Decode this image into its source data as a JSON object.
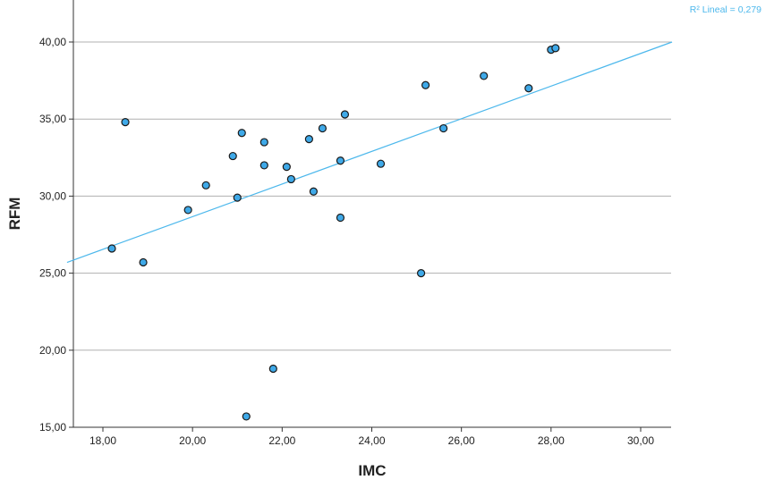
{
  "chart_data": {
    "type": "scatter",
    "xlabel": "IMC",
    "ylabel": "RFM",
    "xlim": [
      17.2,
      30.7
    ],
    "ylim": [
      15,
      42
    ],
    "xticks": [
      18,
      20,
      22,
      24,
      26,
      28,
      30
    ],
    "yticks": [
      15,
      20,
      25,
      30,
      35,
      40
    ],
    "xtick_labels": [
      "18,00",
      "20,00",
      "22,00",
      "24,00",
      "26,00",
      "28,00",
      "30,00"
    ],
    "ytick_labels": [
      "15,00",
      "20,00",
      "25,00",
      "30,00",
      "35,00",
      "40,00"
    ],
    "grid": "horizontal",
    "annotation": "R² Lineal = 0,279",
    "fit_line": {
      "type": "linear",
      "x": [
        17.2,
        30.7
      ],
      "y": [
        25.7,
        40.0
      ]
    },
    "series": [
      {
        "points": [
          {
            "x": 18.2,
            "y": 26.6
          },
          {
            "x": 18.5,
            "y": 34.8
          },
          {
            "x": 18.9,
            "y": 25.7
          },
          {
            "x": 19.9,
            "y": 29.1
          },
          {
            "x": 20.3,
            "y": 30.7
          },
          {
            "x": 20.9,
            "y": 32.6
          },
          {
            "x": 21.0,
            "y": 29.9
          },
          {
            "x": 21.1,
            "y": 34.1
          },
          {
            "x": 21.2,
            "y": 15.7
          },
          {
            "x": 21.6,
            "y": 33.5
          },
          {
            "x": 21.6,
            "y": 32.0
          },
          {
            "x": 21.8,
            "y": 18.8
          },
          {
            "x": 22.1,
            "y": 31.9
          },
          {
            "x": 22.2,
            "y": 31.1
          },
          {
            "x": 22.6,
            "y": 33.7
          },
          {
            "x": 22.7,
            "y": 30.3
          },
          {
            "x": 22.9,
            "y": 34.4
          },
          {
            "x": 23.3,
            "y": 32.3
          },
          {
            "x": 23.3,
            "y": 28.6
          },
          {
            "x": 23.4,
            "y": 35.3
          },
          {
            "x": 24.2,
            "y": 32.1
          },
          {
            "x": 25.1,
            "y": 25.0
          },
          {
            "x": 25.2,
            "y": 37.2
          },
          {
            "x": 25.6,
            "y": 34.4
          },
          {
            "x": 26.5,
            "y": 37.8
          },
          {
            "x": 27.5,
            "y": 37.0
          },
          {
            "x": 28.0,
            "y": 39.5
          },
          {
            "x": 28.1,
            "y": 39.6
          }
        ]
      }
    ]
  },
  "colors": {
    "marker_fill": "#3fa9e8",
    "marker_stroke": "#1a1a1a",
    "fit_line": "#4db8ec",
    "grid": "#b0b0b0",
    "axis": "#333333",
    "annotation": "#4db8ec"
  }
}
